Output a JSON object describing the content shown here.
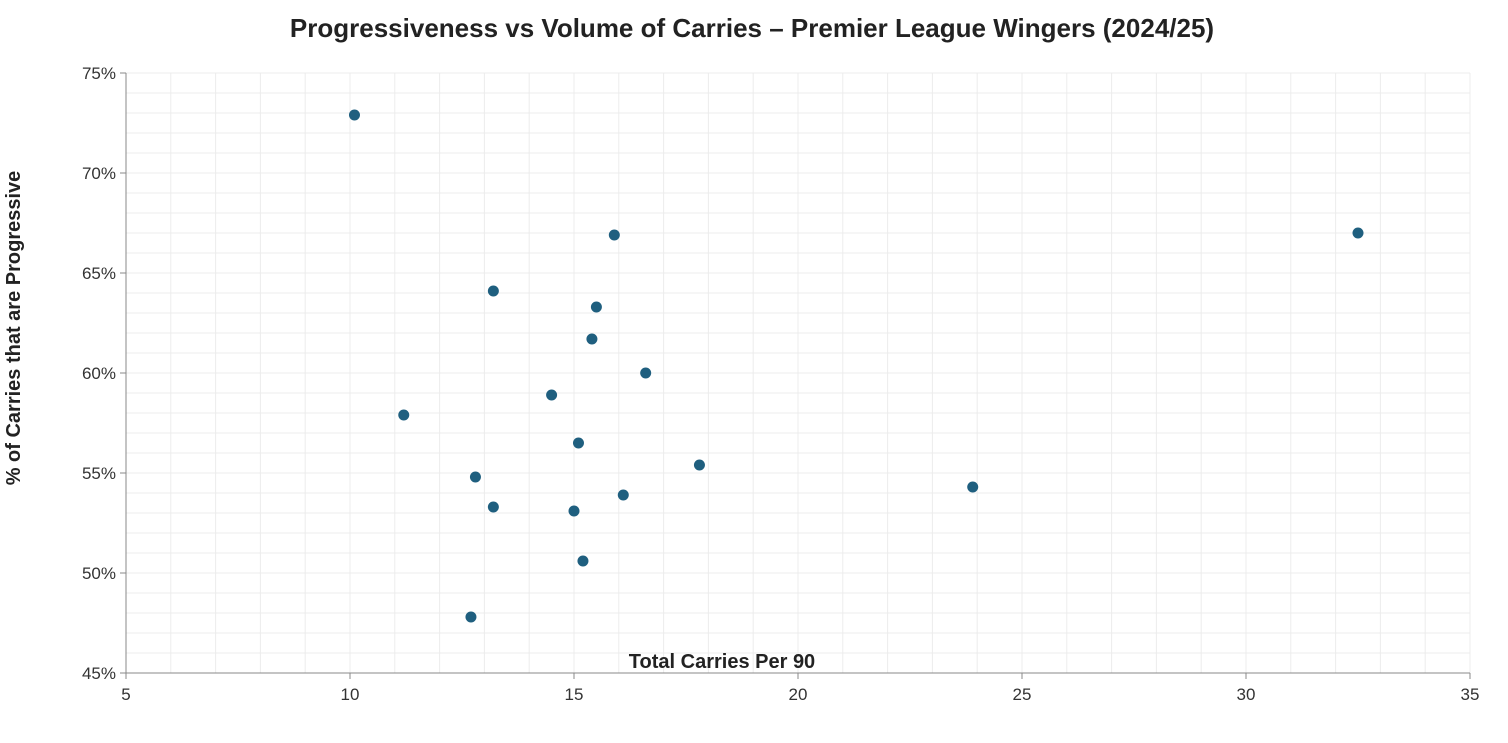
{
  "chart_data": {
    "type": "scatter",
    "title": "Progressiveness vs Volume of Carries – Premier League Wingers (2024/25)",
    "xlabel": "Total Carries Per 90",
    "ylabel": "% of Carries that are Progressive",
    "xlim": [
      5,
      35
    ],
    "ylim": [
      0.45,
      0.75
    ],
    "x_ticks": [
      5,
      10,
      15,
      20,
      25,
      30,
      35
    ],
    "x_tick_labels": [
      "5",
      "10",
      "15",
      "20",
      "25",
      "30",
      "35"
    ],
    "y_ticks": [
      0.45,
      0.5,
      0.55,
      0.6,
      0.65,
      0.7,
      0.75
    ],
    "y_tick_labels": [
      "45%",
      "50%",
      "55%",
      "60%",
      "65%",
      "70%",
      "75%"
    ],
    "grid": true,
    "point_color": "#1f5f7f",
    "series": [
      {
        "points": [
          {
            "x": 10.1,
            "y": 0.729
          },
          {
            "x": 11.2,
            "y": 0.579
          },
          {
            "x": 12.7,
            "y": 0.478
          },
          {
            "x": 12.8,
            "y": 0.548
          },
          {
            "x": 13.2,
            "y": 0.641
          },
          {
            "x": 13.2,
            "y": 0.533
          },
          {
            "x": 14.5,
            "y": 0.589
          },
          {
            "x": 15.0,
            "y": 0.531
          },
          {
            "x": 15.1,
            "y": 0.565
          },
          {
            "x": 15.2,
            "y": 0.506
          },
          {
            "x": 15.4,
            "y": 0.617
          },
          {
            "x": 15.5,
            "y": 0.633
          },
          {
            "x": 15.9,
            "y": 0.669
          },
          {
            "x": 16.1,
            "y": 0.539
          },
          {
            "x": 16.6,
            "y": 0.6
          },
          {
            "x": 17.8,
            "y": 0.554
          },
          {
            "x": 23.9,
            "y": 0.543
          },
          {
            "x": 32.5,
            "y": 0.67
          }
        ]
      }
    ]
  }
}
